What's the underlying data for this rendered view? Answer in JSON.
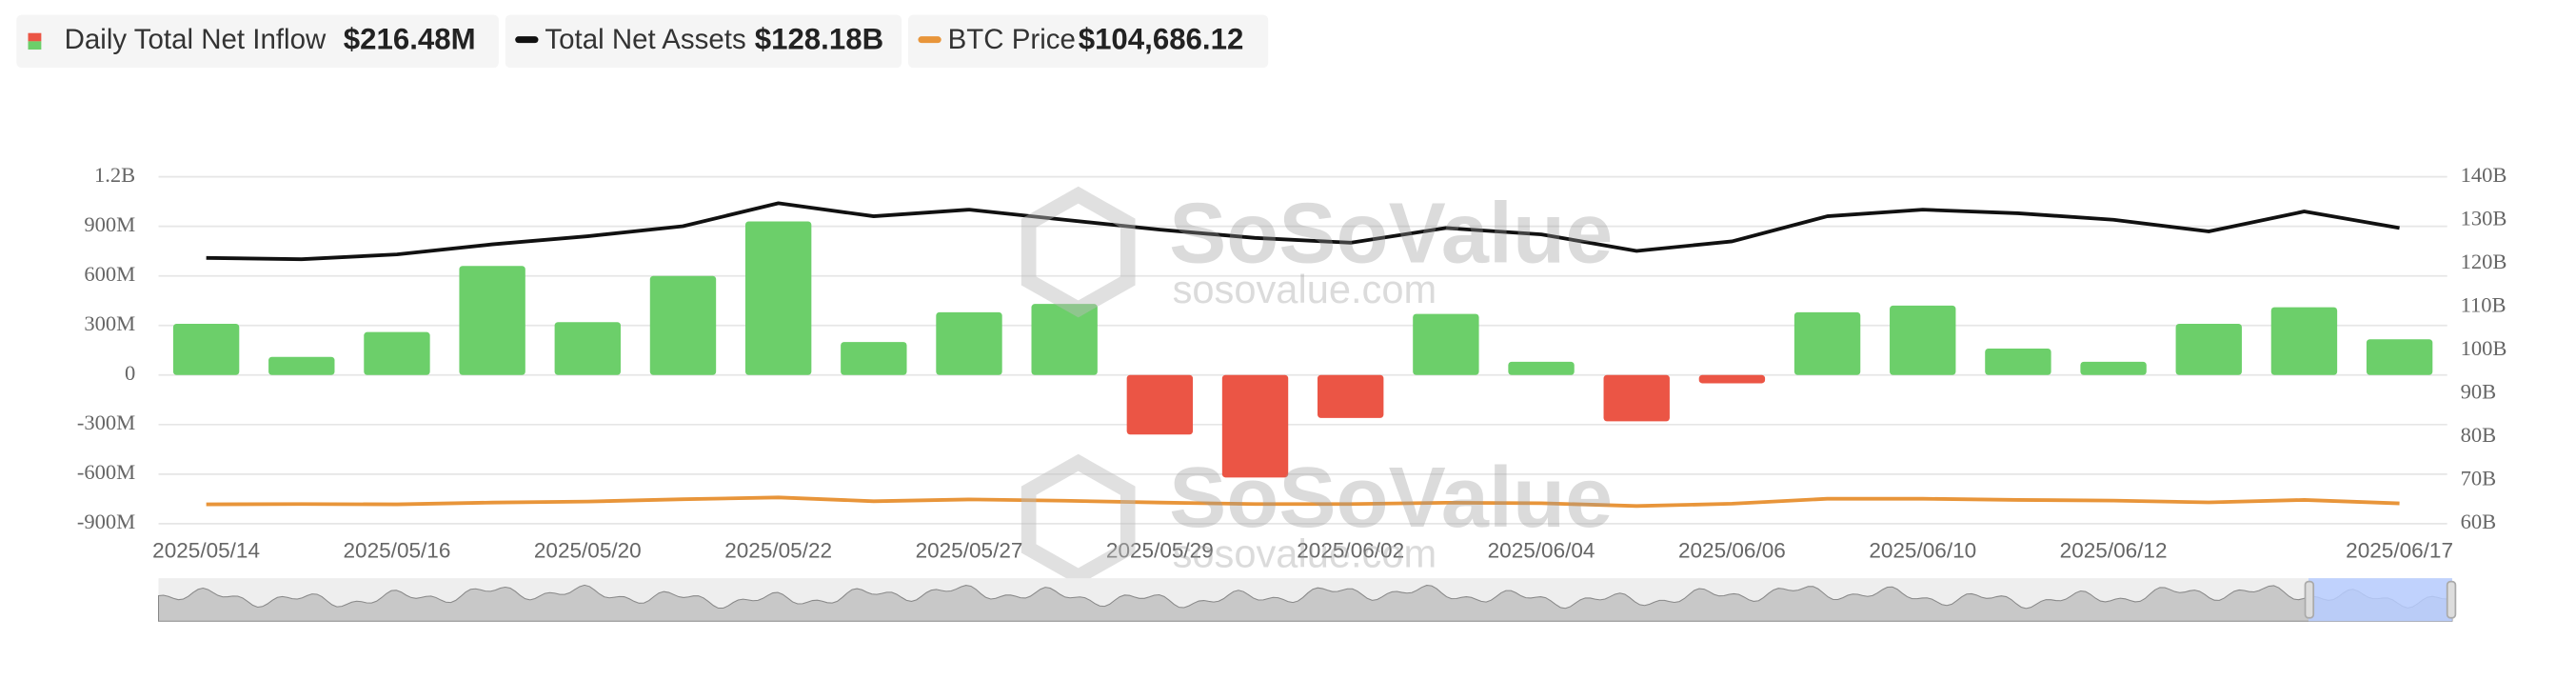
{
  "chart_data": {
    "type": "bar_line",
    "legend": [
      {
        "name": "Daily Total Net Inflow",
        "value": "$216.48M"
      },
      {
        "name": "Total Net Assets",
        "value": "$128.18B"
      },
      {
        "name": "BTC Price",
        "value": "$104,686.12"
      }
    ],
    "watermark": {
      "brand": "SoSoValue",
      "site": "sosovalue.com"
    },
    "categories": [
      "2025/05/14",
      null,
      "2025/05/16",
      null,
      "2025/05/20",
      null,
      "2025/05/22",
      null,
      "2025/05/27",
      null,
      "2025/05/29",
      null,
      "2025/06/02",
      null,
      "2025/06/04",
      null,
      "2025/06/06",
      null,
      "2025/06/10",
      null,
      "2025/06/12",
      null,
      null,
      "2025/06/17"
    ],
    "ylim": [
      -900,
      1200
    ],
    "yticks": [
      {
        "value": -900,
        "label": "-900M"
      },
      {
        "value": -600,
        "label": "-600M"
      },
      {
        "value": -300,
        "label": "-300M"
      },
      0,
      {
        "value": 300,
        "label": "300M"
      },
      {
        "value": 600,
        "label": "600M"
      },
      {
        "value": 900,
        "label": "900M"
      },
      {
        "value": 1200,
        "label": "1.2B"
      }
    ],
    "y2lim": [
      60,
      140
    ],
    "y2ticks": [
      {
        "value": 60,
        "label": "60B"
      },
      {
        "value": 70,
        "label": "70B"
      },
      {
        "value": 80,
        "label": "80B"
      },
      {
        "value": 90,
        "label": "90B"
      },
      {
        "value": 100,
        "label": "100B"
      },
      {
        "value": 110,
        "label": "110B"
      },
      {
        "value": 120,
        "label": "120B"
      },
      {
        "value": 130,
        "label": "130B"
      },
      {
        "value": 140,
        "label": "140B"
      }
    ],
    "y3lim": [
      80000,
      500000
    ],
    "grid": true,
    "series": [
      {
        "name": "Daily Total Net Inflow",
        "type": "bar",
        "color_positive": "#6ccf6a",
        "color_negative": "#eb5545",
        "values": [
          310,
          110,
          260,
          660,
          320,
          600,
          930,
          200,
          380,
          430,
          -360,
          -620,
          -260,
          370,
          80,
          -280,
          -50,
          380,
          420,
          160,
          80,
          310,
          410,
          216.48
        ]
      },
      {
        "name": "Total Net Assets",
        "type": "line",
        "axis": "y2",
        "color": "#111111",
        "values": [
          121.3,
          121.0,
          122.1,
          124.4,
          126.3,
          128.6,
          133.9,
          130.9,
          132.4,
          130.1,
          127.8,
          125.9,
          124.8,
          128.2,
          126.7,
          122.9,
          125.1,
          130.9,
          132.4,
          131.6,
          130.1,
          127.4,
          132.0,
          128.18
        ]
      },
      {
        "name": "BTC Price",
        "type": "line",
        "axis": "y3",
        "color": "#e8953a",
        "values": [
          103500,
          103700,
          103400,
          105600,
          106800,
          109600,
          111700,
          107300,
          109400,
          107800,
          105600,
          103900,
          103800,
          105400,
          104700,
          101500,
          104300,
          110300,
          110200,
          108700,
          108000,
          105900,
          108900,
          104686.12
        ]
      }
    ]
  }
}
